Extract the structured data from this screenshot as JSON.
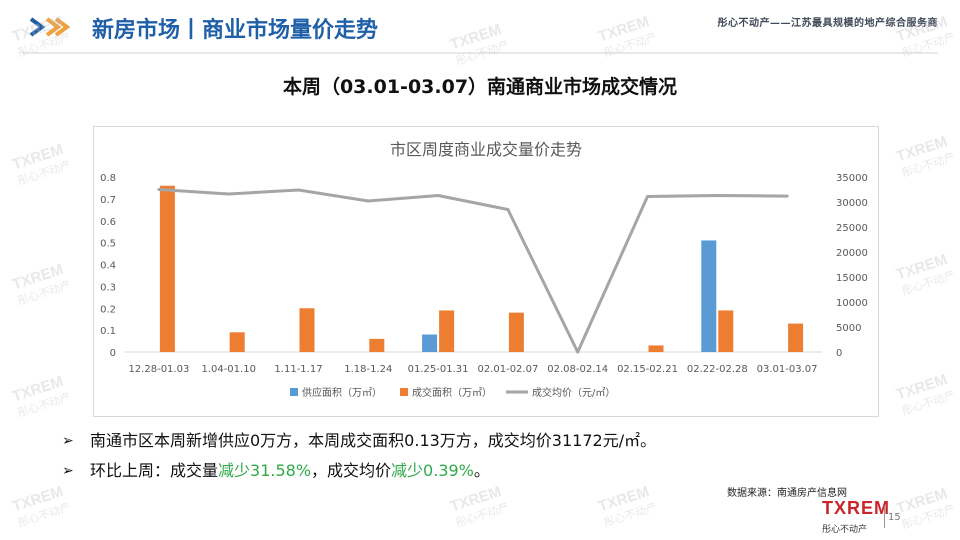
{
  "header": {
    "title": "新房市场丨商业市场量价走势",
    "tagline": "彤心不动产——江苏最具规模的地产综合服务商"
  },
  "subheading": "本周（03.01-03.07）南通商业市场成交情况",
  "chart_data": {
    "type": "bar",
    "title": "市区周度商业成交量价走势",
    "categories": [
      "12.28-01.03",
      "1.04-01.10",
      "1.11-1.17",
      "1.18-1.24",
      "01.25-01.31",
      "02.01-02.07",
      "02.08-02.14",
      "02.15-02.21",
      "02.22-02.28",
      "03.01-03.07"
    ],
    "left_axis": {
      "ylim": [
        0,
        0.8
      ],
      "ticks": [
        "0",
        "0.1",
        "0.2",
        "0.3",
        "0.4",
        "0.5",
        "0.6",
        "0.7",
        "0.8"
      ]
    },
    "right_axis": {
      "ylim": [
        0,
        35000
      ],
      "ticks": [
        "0",
        "5000",
        "10000",
        "15000",
        "20000",
        "25000",
        "30000",
        "35000"
      ]
    },
    "series": [
      {
        "name": "供应面积（万㎡）",
        "type": "bar",
        "axis": "left",
        "color": "#5b9bd5",
        "values": [
          0,
          0,
          0,
          0,
          0.08,
          0,
          0,
          0,
          0.51,
          0
        ]
      },
      {
        "name": "成交面积（万㎡）",
        "type": "bar",
        "axis": "left",
        "color": "#ed7d31",
        "values": [
          0.76,
          0.09,
          0.2,
          0.06,
          0.19,
          0.18,
          0,
          0.03,
          0.19,
          0.13
        ]
      },
      {
        "name": "成交均价（元/㎡）",
        "type": "line",
        "axis": "right",
        "color": "#a5a5a5",
        "values": [
          32500,
          31600,
          32400,
          30200,
          31300,
          28500,
          0,
          31100,
          31300,
          31172
        ]
      }
    ],
    "legend_position": "bottom",
    "grid": false
  },
  "bullets": [
    {
      "parts": [
        {
          "text": "南通市区本周新增供应0万方，本周成交面积0.13万方，成交均价31172元/㎡。",
          "highlight": false
        }
      ]
    },
    {
      "parts": [
        {
          "text": "环比上周：成交量",
          "highlight": false
        },
        {
          "text": "减少31.58%",
          "highlight": true
        },
        {
          "text": "，成交均价",
          "highlight": false
        },
        {
          "text": "减少0.39%",
          "highlight": true
        },
        {
          "text": "。",
          "highlight": false
        }
      ]
    }
  ],
  "bullet_marker": "➢",
  "source": "数据来源：南通房产信息网",
  "logo": {
    "mark": "TXREM",
    "sub": "彤心不动产"
  },
  "page_number": "15",
  "watermark": {
    "mark": "TXREM",
    "sub": "彤心不动产"
  }
}
